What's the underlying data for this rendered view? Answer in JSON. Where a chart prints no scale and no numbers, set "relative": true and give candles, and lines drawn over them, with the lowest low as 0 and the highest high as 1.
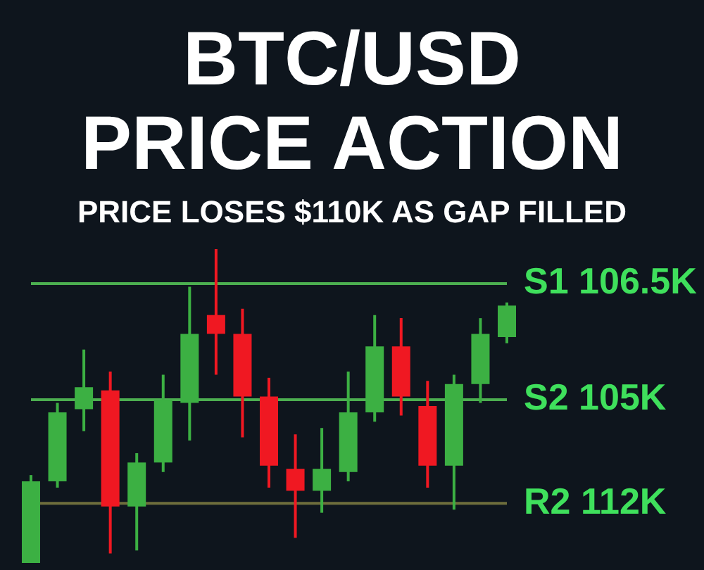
{
  "chart_data": {
    "type": "candlestick",
    "title": "BTC/USD PRICE ACTION",
    "subtitle": "PRICE LOSES $110K AS GAP FILLED",
    "relative": true,
    "categories": [
      null,
      null,
      null,
      null,
      null,
      null,
      null,
      null,
      null,
      null,
      null,
      null,
      null,
      null,
      null,
      null,
      null,
      null,
      null
    ],
    "ohlc": [
      [
        0,
        0.28,
        0,
        0.26
      ],
      [
        0.26,
        0.51,
        0.24,
        0.48
      ],
      [
        0.49,
        0.68,
        0.42,
        0.56
      ],
      [
        0.55,
        0.61,
        0.03,
        0.18
      ],
      [
        0.18,
        0.35,
        0.04,
        0.32
      ],
      [
        0.32,
        0.6,
        0.29,
        0.52
      ],
      [
        0.51,
        0.88,
        0.39,
        0.73
      ],
      [
        0.79,
        1,
        0.6,
        0.73
      ],
      [
        0.73,
        0.81,
        0.4,
        0.53
      ],
      [
        0.53,
        0.59,
        0.24,
        0.31
      ],
      [
        0.3,
        0.41,
        0.08,
        0.23
      ],
      [
        0.23,
        0.43,
        0.16,
        0.3
      ],
      [
        0.29,
        0.61,
        0.26,
        0.48
      ],
      [
        0.48,
        0.79,
        0.45,
        0.69
      ],
      [
        0.69,
        0.78,
        0.47,
        0.53
      ],
      [
        0.5,
        0.58,
        0.24,
        0.31
      ],
      [
        0.31,
        0.6,
        0.17,
        0.57
      ],
      [
        0.57,
        0.78,
        0.51,
        0.73
      ],
      [
        0.72,
        0.83,
        0.7,
        0.82
      ]
    ],
    "colors": [
      "#3cb043",
      "#3cb043",
      "#3cb043",
      "#f01822",
      "#3cb043",
      "#3cb043",
      "#3cb043",
      "#f01822",
      "#f01822",
      "#f01822",
      "#f01822",
      "#3cb043",
      "#3cb043",
      "#3cb043",
      "#f01822",
      "#f01822",
      "#3cb043",
      "#3cb043",
      "#3cb043"
    ],
    "ref_lines": [
      {
        "axis": "y",
        "value": 0.89,
        "label": "S1 106.5K",
        "color": "#4caf50"
      },
      {
        "axis": "y",
        "value": 0.52,
        "label": "S2 105K",
        "color": "#4caf50"
      },
      {
        "axis": "y",
        "value": 0.19,
        "label": "R2 112K",
        "color": "#6e6e3c"
      }
    ]
  }
}
